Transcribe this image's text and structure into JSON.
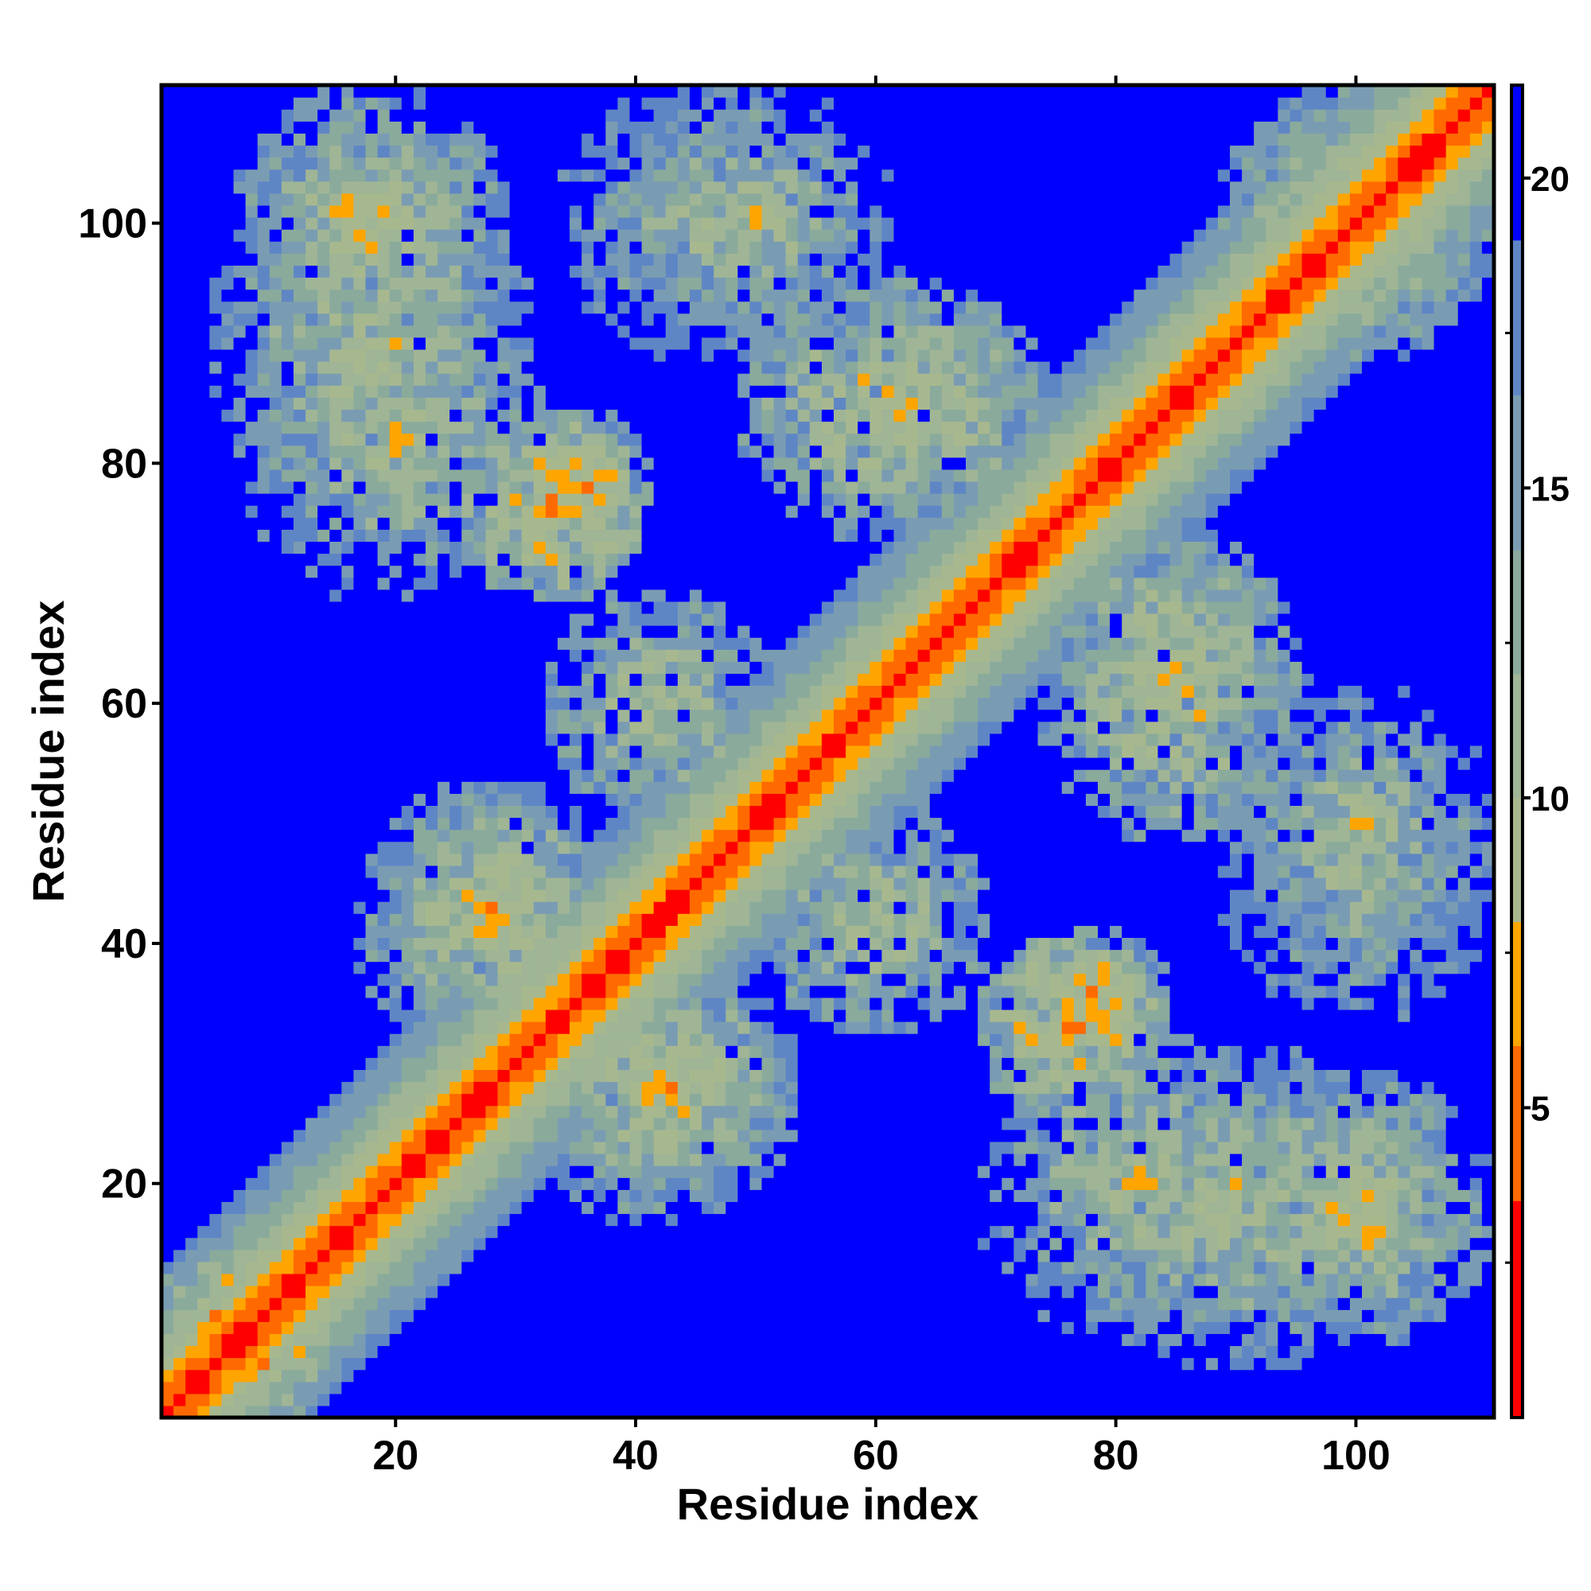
{
  "chart_data": {
    "type": "heatmap",
    "title": "",
    "xlabel": "Residue index",
    "ylabel": "Residue index",
    "n_residues": 111,
    "xlim": [
      0.5,
      111.5
    ],
    "ylim": [
      0.5,
      111.5
    ],
    "x_ticks": [
      20,
      40,
      60,
      80,
      100
    ],
    "y_ticks": [
      20,
      40,
      60,
      80,
      100
    ],
    "colorbar": {
      "ticks": [
        5,
        10,
        15,
        20
      ],
      "range": [
        0,
        21.5
      ],
      "colors": [
        {
          "max": 3.5,
          "color": "#ff0000"
        },
        {
          "max": 6.0,
          "color": "#ff6a00"
        },
        {
          "max": 8.0,
          "color": "#ffa500"
        },
        {
          "max": 10.0,
          "color": "#a8b88e"
        },
        {
          "max": 12.0,
          "color": "#9fb595"
        },
        {
          "max": 14.0,
          "color": "#8aaa9c"
        },
        {
          "max": 16.5,
          "color": "#7a9cb3"
        },
        {
          "max": 19.0,
          "color": "#5f86c4"
        },
        {
          "max": 21.5,
          "color": "#0000ff"
        }
      ]
    },
    "diagonal_band_falloff": [
      0,
      3.8,
      5.6,
      7.2,
      8.6,
      10.0,
      11.2,
      12.3,
      13.4,
      14.4,
      15.3,
      16.2,
      17.0
    ],
    "contact_regions": [
      {
        "x_center": 6,
        "y_center": 9,
        "radius": 6,
        "min_distance": 6.5
      },
      {
        "x_center": 18,
        "y_center": 100,
        "radius": 12,
        "min_distance": 9
      },
      {
        "x_center": 20,
        "y_center": 82,
        "radius": 14,
        "min_distance": 10
      },
      {
        "x_center": 35,
        "y_center": 78,
        "radius": 7,
        "min_distance": 6.5
      },
      {
        "x_center": 50,
        "y_center": 100,
        "radius": 12,
        "min_distance": 10.5
      },
      {
        "x_center": 65,
        "y_center": 85,
        "radius": 10,
        "min_distance": 9
      },
      {
        "x_center": 28,
        "y_center": 42,
        "radius": 12,
        "min_distance": 9
      },
      {
        "x_center": 43,
        "y_center": 28,
        "radius": 10,
        "min_distance": 8.5
      },
      {
        "x_center": 60,
        "y_center": 42,
        "radius": 10,
        "min_distance": 9
      },
      {
        "x_center": 76,
        "y_center": 33,
        "radius": 8,
        "min_distance": 6.5
      },
      {
        "x_center": 90,
        "y_center": 18,
        "radius": 14,
        "min_distance": 10
      },
      {
        "x_center": 100,
        "y_center": 45,
        "radius": 12,
        "min_distance": 11
      },
      {
        "x_center": 100,
        "y_center": 100,
        "radius": 12,
        "min_distance": 9
      },
      {
        "x_center": 85,
        "y_center": 60,
        "radius": 12,
        "min_distance": 8.5
      },
      {
        "x_center": 100,
        "y_center": 18,
        "radius": 8,
        "min_distance": 8
      }
    ]
  }
}
